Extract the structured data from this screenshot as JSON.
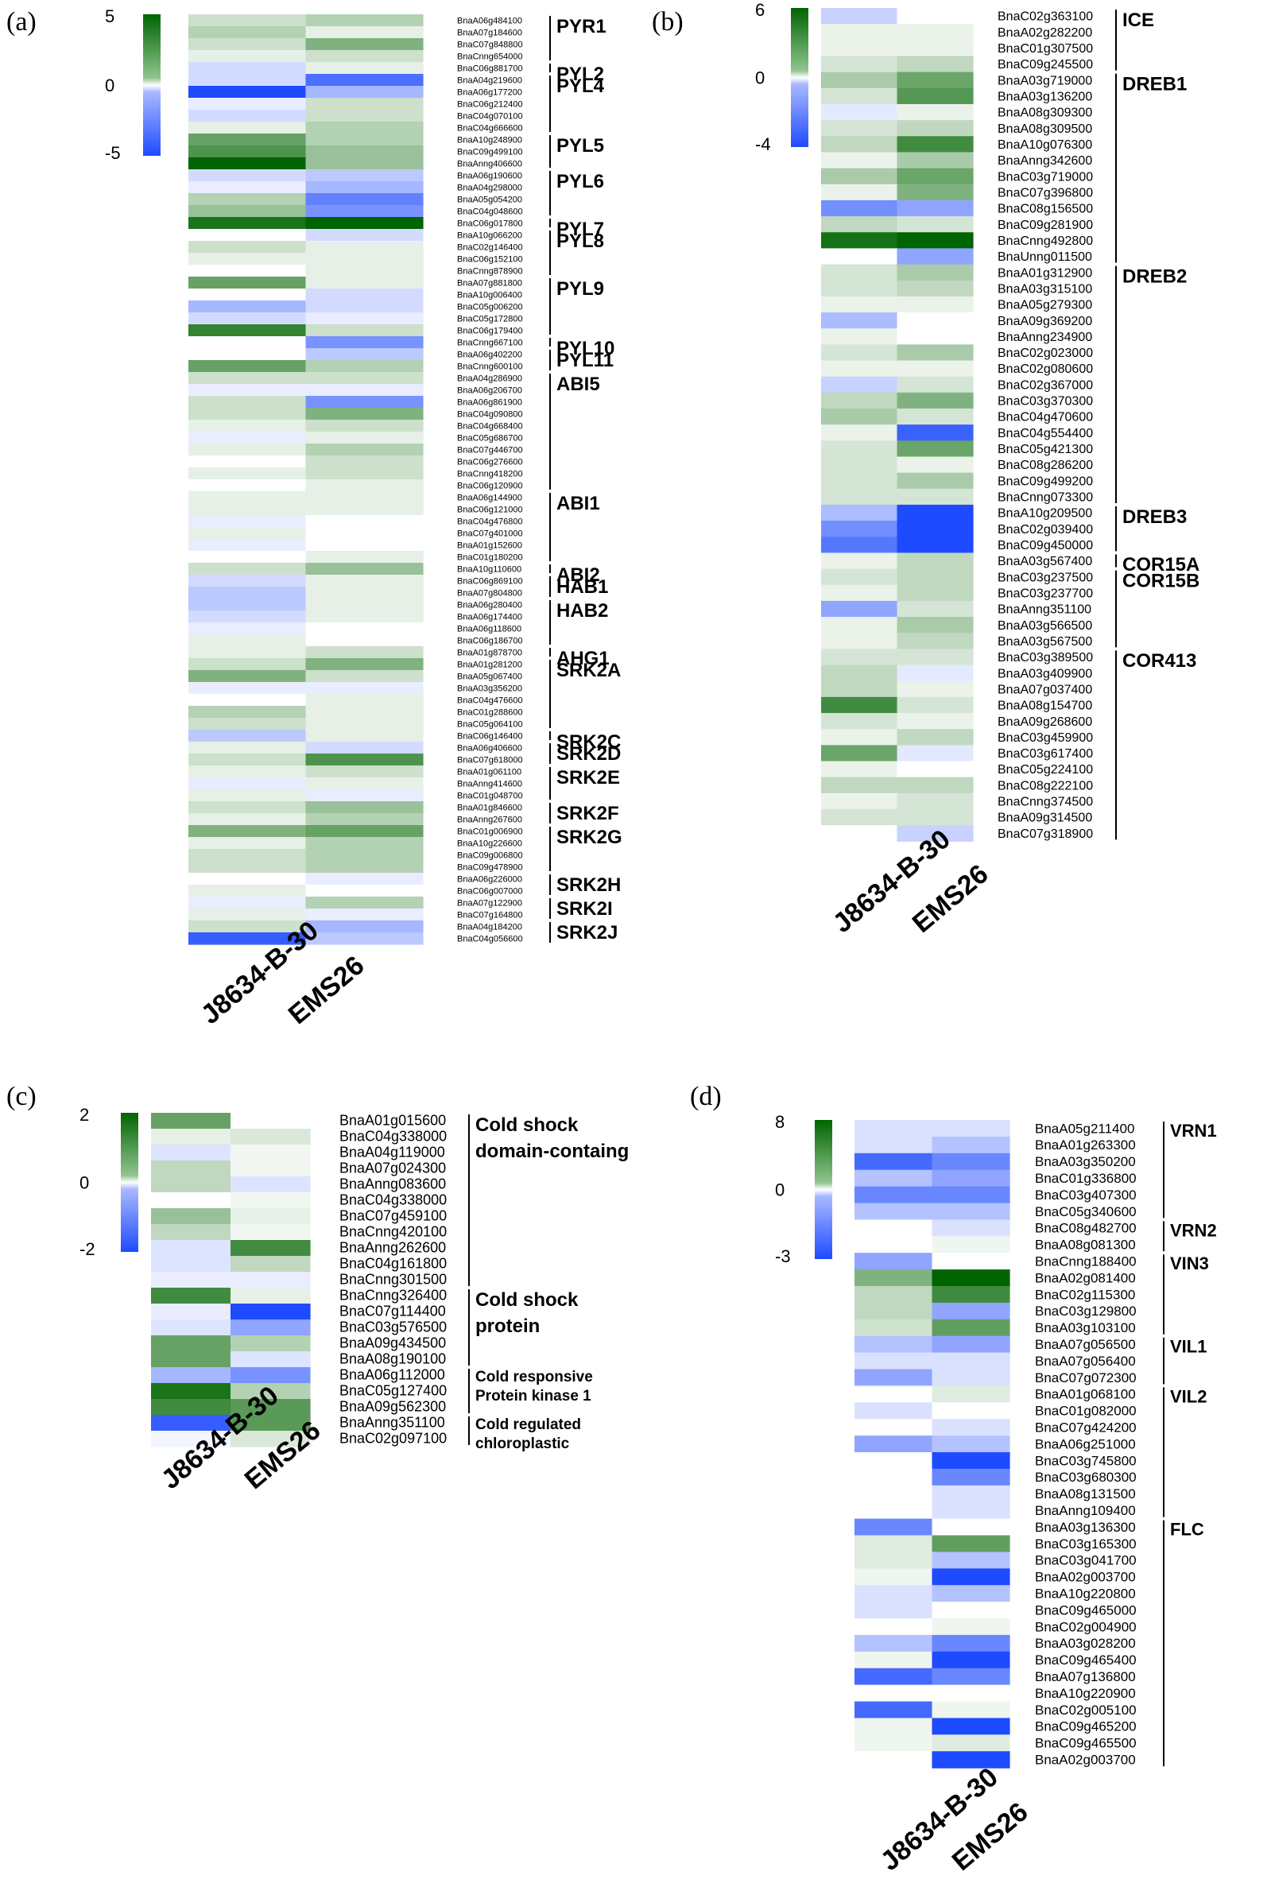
{
  "colors": {
    "high": "#006400",
    "mid": "#ffffff",
    "low": "#1e4bff"
  },
  "chart_data": [
    {
      "type": "heatmap",
      "panel": "(a)",
      "columns": [
        "J8634-B-30",
        "EMS26"
      ],
      "scale": {
        "min": -5,
        "max": 5,
        "ticks": [
          "5",
          "0",
          "-5"
        ]
      },
      "rows": [
        "BnaA06g484100",
        "BnaA07g184600",
        "BnaC07g848800",
        "BnaCnng654000",
        "BnaC06g881700",
        "BnaA04g219600",
        "BnaA06g177200",
        "BnaC06g212400",
        "BnaC04g070100",
        "BnaC04g666600",
        "BnaA10g248900",
        "BnaC09g499100",
        "BnaAnng406600",
        "BnaA06g190600",
        "BnaA04g298000",
        "BnaA05g054200",
        "BnaC04g048600",
        "BnaC06g017800",
        "BnaA10g066200",
        "BnaC02g146400",
        "BnaC06g152100",
        "BnaCnng878900",
        "BnaA07g881800",
        "BnaA10g006400",
        "BnaC05g006200",
        "BnaC05g172800",
        "BnaC06g179400",
        "BnaCnng667100",
        "BnaA06g402200",
        "BnaCnng600100",
        "BnaA04g286900",
        "BnaA06g206700",
        "BnaA06g861900",
        "BnaC04g090800",
        "BnaC04g668400",
        "BnaC05g686700",
        "BnaC07g446700",
        "BnaC06g276600",
        "BnaCnng418200",
        "BnaC06g120900",
        "BnaA06g144900",
        "BnaC06g121000",
        "BnaC04g476800",
        "BnaC07g401000",
        "BnaA01g152600",
        "BnaC01g180200",
        "BnaA10g110600",
        "BnaC06g869100",
        "BnaA07g804800",
        "BnaA06g280400",
        "BnaA06g174400",
        "BnaA06g118600",
        "BnaC06g186700",
        "BnaA01g878700",
        "BnaA01g281200",
        "BnaA05g067400",
        "BnaA03g356200",
        "BnaC04g476600",
        "BnaC01g288600",
        "BnaC05g064100",
        "BnaC06g146400",
        "BnaA06g406600",
        "BnaC07g618000",
        "BnaA01g061100",
        "BnaAnng414600",
        "BnaC01g048700",
        "BnaA01g846600",
        "BnaAnng267600",
        "BnaC01g006900",
        "BnaA10g226600",
        "BnaC09g006800",
        "BnaC09g478900",
        "BnaA06g226000",
        "BnaC06g007000",
        "BnaA07g122900",
        "BnaC07g164800",
        "BnaA04g184200",
        "BnaC04g056600"
      ],
      "values": [
        [
          1,
          1.5
        ],
        [
          1.5,
          0.5
        ],
        [
          1,
          2.5
        ],
        [
          0.5,
          1
        ],
        [
          -1,
          0.5
        ],
        [
          -1,
          -4
        ],
        [
          -5,
          -2
        ],
        [
          -0.5,
          1
        ],
        [
          -1,
          1
        ],
        [
          0.5,
          1.5
        ],
        [
          3,
          1.5
        ],
        [
          3.5,
          2
        ],
        [
          5,
          2
        ],
        [
          -1,
          -1.5
        ],
        [
          -0.5,
          -2
        ],
        [
          1.5,
          -3.5
        ],
        [
          2,
          -3
        ],
        [
          4.5,
          5
        ],
        [
          0,
          -1
        ],
        [
          1,
          0.5
        ],
        [
          0.5,
          0.5
        ],
        [
          0,
          0.5
        ],
        [
          3,
          0.5
        ],
        [
          0,
          -1
        ],
        [
          -2,
          -1
        ],
        [
          -1,
          -0.5
        ],
        [
          4,
          1
        ],
        [
          0,
          -3
        ],
        [
          0,
          -1.5
        ],
        [
          3,
          1.5
        ],
        [
          1,
          1
        ],
        [
          -0.5,
          -0.5
        ],
        [
          1,
          -3
        ],
        [
          1,
          2.5
        ],
        [
          0.5,
          1
        ],
        [
          -0.5,
          0.5
        ],
        [
          0.5,
          1.5
        ],
        [
          0,
          1
        ],
        [
          0.5,
          1
        ],
        [
          0,
          0.5
        ],
        [
          0.5,
          0.5
        ],
        [
          0.5,
          0.5
        ],
        [
          -0.5,
          0
        ],
        [
          0.5,
          0
        ],
        [
          -0.5,
          0
        ],
        [
          0,
          0.5
        ],
        [
          1,
          2
        ],
        [
          -1,
          0.5
        ],
        [
          -1.5,
          0.5
        ],
        [
          -1.5,
          0.5
        ],
        [
          -1,
          0.5
        ],
        [
          -0.5,
          0
        ],
        [
          0.5,
          0
        ],
        [
          0.5,
          1
        ],
        [
          1,
          2.5
        ],
        [
          2.5,
          1
        ],
        [
          -0.5,
          -0.5
        ],
        [
          0,
          0.5
        ],
        [
          1.5,
          0.5
        ],
        [
          1,
          0.5
        ],
        [
          -1.5,
          0.5
        ],
        [
          0.5,
          -1
        ],
        [
          1,
          3.5
        ],
        [
          0.5,
          1
        ],
        [
          -0.5,
          0.5
        ],
        [
          0.5,
          -0.5
        ],
        [
          1,
          2
        ],
        [
          0.5,
          1.5
        ],
        [
          2.5,
          3
        ],
        [
          0.5,
          1.5
        ],
        [
          1,
          1.5
        ],
        [
          1,
          1.5
        ],
        [
          0,
          -0.5
        ],
        [
          0.5,
          0
        ],
        [
          -0.5,
          1.5
        ],
        [
          0.5,
          -0.5
        ],
        [
          1,
          -2
        ],
        [
          -4.5,
          -1.5
        ]
      ],
      "groups": [
        {
          "name": "PYR1",
          "start": 0,
          "end": 3
        },
        {
          "name": "PYL2",
          "start": 4,
          "end": 4
        },
        {
          "name": "PYL4",
          "start": 5,
          "end": 9
        },
        {
          "name": "PYL5",
          "start": 10,
          "end": 12
        },
        {
          "name": "PYL6",
          "start": 13,
          "end": 16
        },
        {
          "name": "PYL7",
          "start": 17,
          "end": 17
        },
        {
          "name": "PYL8",
          "start": 18,
          "end": 21
        },
        {
          "name": "PYL9",
          "start": 22,
          "end": 26
        },
        {
          "name": "PYL10",
          "start": 27,
          "end": 27
        },
        {
          "name": "PYL11",
          "start": 28,
          "end": 29
        },
        {
          "name": "ABI5",
          "start": 30,
          "end": 39
        },
        {
          "name": "ABI1",
          "start": 40,
          "end": 45
        },
        {
          "name": "ABI2",
          "start": 46,
          "end": 46
        },
        {
          "name": "HAB1",
          "start": 47,
          "end": 48
        },
        {
          "name": "HAB2",
          "start": 49,
          "end": 52
        },
        {
          "name": "AHG1",
          "start": 53,
          "end": 53
        },
        {
          "name": "SRK2A",
          "start": 54,
          "end": 59
        },
        {
          "name": "SRK2C",
          "start": 60,
          "end": 60
        },
        {
          "name": "SRK2D",
          "start": 61,
          "end": 62
        },
        {
          "name": "SRK2E",
          "start": 63,
          "end": 65
        },
        {
          "name": "SRK2F",
          "start": 66,
          "end": 67
        },
        {
          "name": "SRK2G",
          "start": 68,
          "end": 71
        },
        {
          "name": "SRK2H",
          "start": 72,
          "end": 73
        },
        {
          "name": "SRK2I",
          "start": 74,
          "end": 75
        },
        {
          "name": "SRK2J",
          "start": 76,
          "end": 77
        }
      ]
    },
    {
      "type": "heatmap",
      "panel": "(b)",
      "columns": [
        "J8634-B-30",
        "EMS26"
      ],
      "scale": {
        "min": -4,
        "max": 6,
        "ticks": [
          "6",
          "0",
          "-4"
        ]
      },
      "rows": [
        "BnaC02g363100",
        "BnaA02g282200",
        "BnaC01g307500",
        "BnaC09g245500",
        "BnaA03g719000",
        "BnaA03g136200",
        "BnaA08g309300",
        "BnaA08g309500",
        "BnaA10g076300",
        "BnaAnng342600",
        "BnaC03g719000",
        "BnaC07g396800",
        "BnaC08g156500",
        "BnaC09g281900",
        "BnaCnng492800",
        "BnaUnng011500",
        "BnaA01g312900",
        "BnaA03g315100",
        "BnaA05g279300",
        "BnaA09g369200",
        "BnaAnng234900",
        "BnaC02g023000",
        "BnaC02g080600",
        "BnaC02g367000",
        "BnaC03g370300",
        "BnaC04g470600",
        "BnaC04g554400",
        "BnaC05g421300",
        "BnaC08g286200",
        "BnaC09g499200",
        "BnaCnng073300",
        "BnaA10g209500",
        "BnaC02g039400",
        "BnaC09g450000",
        "BnaA03g567400",
        "BnaC03g237500",
        "BnaC03g237700",
        "BnaAnng351100",
        "BnaA03g566500",
        "BnaA03g567500",
        "BnaC03g389500",
        "BnaA03g409900",
        "BnaA07g037400",
        "BnaA08g154700",
        "BnaA09g268600",
        "BnaC03g459900",
        "BnaC03g617400",
        "BnaC05g224100",
        "BnaC08g222100",
        "BnaCnng374500",
        "BnaA09g314500",
        "BnaC07g318900"
      ],
      "values": [
        [
          -1,
          0
        ],
        [
          0.5,
          0.5
        ],
        [
          0.5,
          0.5
        ],
        [
          1,
          1.5
        ],
        [
          2,
          3.5
        ],
        [
          1,
          4
        ],
        [
          -0.5,
          0.5
        ],
        [
          1,
          1.5
        ],
        [
          1.5,
          4.5
        ],
        [
          0.5,
          2
        ],
        [
          2,
          3.5
        ],
        [
          0.5,
          3
        ],
        [
          -2.5,
          -2
        ],
        [
          1.5,
          1
        ],
        [
          5.5,
          6
        ],
        [
          0,
          -2
        ],
        [
          1,
          2
        ],
        [
          1,
          1.5
        ],
        [
          0.5,
          0.5
        ],
        [
          -1.5,
          0
        ],
        [
          0.5,
          0
        ],
        [
          1,
          2
        ],
        [
          0.5,
          0.5
        ],
        [
          -1,
          1
        ],
        [
          1.5,
          3
        ],
        [
          2,
          1
        ],
        [
          0.5,
          -3.5
        ],
        [
          1,
          3.5
        ],
        [
          1,
          0.5
        ],
        [
          1,
          2
        ],
        [
          1,
          1
        ],
        [
          -1.5,
          -4
        ],
        [
          -2.5,
          -4
        ],
        [
          -3,
          -4
        ],
        [
          0.5,
          1.5
        ],
        [
          1,
          1.5
        ],
        [
          0.5,
          1.5
        ],
        [
          -2,
          1
        ],
        [
          0.5,
          2
        ],
        [
          0.5,
          1.5
        ],
        [
          1,
          1
        ],
        [
          1.5,
          -0.5
        ],
        [
          1.5,
          0.5
        ],
        [
          4.5,
          1
        ],
        [
          1,
          0.5
        ],
        [
          0.5,
          1.5
        ],
        [
          3.5,
          -0.5
        ],
        [
          0.5,
          0
        ],
        [
          1.5,
          1.5
        ],
        [
          0.5,
          1
        ],
        [
          1,
          1
        ],
        [
          0,
          -1
        ]
      ],
      "groups": [
        {
          "name": "ICE",
          "start": 0,
          "end": 3
        },
        {
          "name": "DREB1",
          "start": 4,
          "end": 15
        },
        {
          "name": "DREB2",
          "start": 16,
          "end": 30
        },
        {
          "name": "DREB3",
          "start": 31,
          "end": 33
        },
        {
          "name": "COR15A",
          "start": 34,
          "end": 34
        },
        {
          "name": "COR15B",
          "start": 35,
          "end": 39
        },
        {
          "name": "COR413",
          "start": 40,
          "end": 51
        }
      ]
    },
    {
      "type": "heatmap",
      "panel": "(c)",
      "columns": [
        "J8634-B-30",
        "EMS26"
      ],
      "scale": {
        "min": -2,
        "max": 2,
        "ticks": [
          "2",
          "0",
          "-2"
        ]
      },
      "rows": [
        "BnaA01g015600",
        "BnaC04g338000",
        "BnaA04g119000",
        "BnaA07g024300",
        "BnaAnng083600",
        "BnaC04g338000",
        "BnaC07g459100",
        "BnaCnng420100",
        "BnaAnng262600",
        "BnaC04g161800",
        "BnaCnng301500",
        "BnaCnng326400",
        "BnaC07g114400",
        "BnaC03g576500",
        "BnaA09g434500",
        "BnaA08g190100",
        "BnaA06g112000",
        "BnaC05g127400",
        "BnaA09g562300",
        "BnaAnng351100",
        "BnaC02g097100"
      ],
      "values": [
        [
          1.2,
          0
        ],
        [
          0.2,
          0.3
        ],
        [
          -0.3,
          0.1
        ],
        [
          0.5,
          0.1
        ],
        [
          0.5,
          -0.3
        ],
        [
          0,
          0.1
        ],
        [
          0.8,
          0.2
        ],
        [
          0.5,
          0.1
        ],
        [
          -0.3,
          1.5
        ],
        [
          -0.3,
          0.5
        ],
        [
          -0.2,
          -0.2
        ],
        [
          1.5,
          0.2
        ],
        [
          -0.2,
          -2
        ],
        [
          -0.3,
          -1
        ],
        [
          1.2,
          0.6
        ],
        [
          1.2,
          -0.3
        ],
        [
          -0.8,
          -1.2
        ],
        [
          1.8,
          0.6
        ],
        [
          1.5,
          1.3
        ],
        [
          -1.8,
          1.3
        ],
        [
          -0.1,
          0.3
        ]
      ],
      "groups": [
        {
          "name": "Cold shock domain-containg",
          "lines": [
            "Cold shock",
            "domain-containg"
          ],
          "start": 0,
          "end": 10,
          "size": "large"
        },
        {
          "name": "Cold shock protein",
          "lines": [
            "Cold shock",
            "protein"
          ],
          "start": 11,
          "end": 15,
          "size": "large"
        },
        {
          "name": "Cold responsive Protein kinase 1",
          "lines": [
            "Cold responsive",
            "Protein kinase 1"
          ],
          "start": 16,
          "end": 18,
          "size": "small"
        },
        {
          "name": "Cold regulated chloroplastic",
          "lines": [
            "Cold regulated",
            "chloroplastic"
          ],
          "start": 19,
          "end": 20,
          "size": "small"
        }
      ]
    },
    {
      "type": "heatmap",
      "panel": "(d)",
      "columns": [
        "J8634-B-30",
        "EMS26"
      ],
      "scale": {
        "min": -3,
        "max": 8,
        "ticks": [
          "8",
          "0",
          "-3"
        ]
      },
      "rows": [
        "BnaA05g211400",
        "BnaA01g263300",
        "BnaA03g350200",
        "BnaC01g336800",
        "BnaC03g407300",
        "BnaC05g340600",
        "BnaC08g482700",
        "BnaA08g081300",
        "BnaCnng188400",
        "BnaA02g081400",
        "BnaC02g115300",
        "BnaC03g129800",
        "BnaA03g103100",
        "BnaA07g056500",
        "BnaA07g056400",
        "BnaC07g072300",
        "BnaA01g068100",
        "BnaC01g082000",
        "BnaC07g424200",
        "BnaA06g251000",
        "BnaC03g745800",
        "BnaC03g680300",
        "BnaA08g131500",
        "BnaAnng109400",
        "BnaA03g136300",
        "BnaC03g165300",
        "BnaC03g041700",
        "BnaA02g003700",
        "BnaA10g220800",
        "BnaC09g465000",
        "BnaC02g004900",
        "BnaA03g028200",
        "BnaC09g465400",
        "BnaA07g136800",
        "BnaA10g220900",
        "BnaC02g005100",
        "BnaC09g465200",
        "BnaC09g465500",
        "BnaA02g003700"
      ],
      "values": [
        [
          -0.5,
          -0.5
        ],
        [
          -0.5,
          -1
        ],
        [
          -2.5,
          -2
        ],
        [
          -1,
          -1.5
        ],
        [
          -2,
          -2
        ],
        [
          -1,
          -1
        ],
        [
          0,
          -0.5
        ],
        [
          0,
          0.5
        ],
        [
          -1.5,
          0
        ],
        [
          4,
          8
        ],
        [
          2,
          6
        ],
        [
          2,
          -1.5
        ],
        [
          1.5,
          5
        ],
        [
          -1,
          -1.5
        ],
        [
          -0.5,
          -0.5
        ],
        [
          -1.5,
          -0.5
        ],
        [
          0,
          1
        ],
        [
          -0.5,
          0
        ],
        [
          0,
          -0.5
        ],
        [
          -1.5,
          -1
        ],
        [
          0,
          -3
        ],
        [
          0,
          -2
        ],
        [
          0,
          -0.5
        ],
        [
          0,
          -0.5
        ],
        [
          -2,
          0
        ],
        [
          1,
          5
        ],
        [
          1,
          -1
        ],
        [
          0.5,
          -3
        ],
        [
          -0.5,
          -1
        ],
        [
          -0.5,
          0
        ],
        [
          0,
          0.5
        ],
        [
          -1,
          -2
        ],
        [
          0.5,
          -3
        ],
        [
          -2.5,
          -2
        ],
        [
          0,
          0
        ],
        [
          -2.5,
          0.5
        ],
        [
          0.5,
          -3
        ],
        [
          0.5,
          1
        ],
        [
          0,
          -3
        ]
      ],
      "groups": [
        {
          "name": "VRN1",
          "start": 0,
          "end": 5
        },
        {
          "name": "VRN2",
          "start": 6,
          "end": 7
        },
        {
          "name": "VIN3",
          "start": 8,
          "end": 12
        },
        {
          "name": "VIL1",
          "start": 13,
          "end": 15
        },
        {
          "name": "VIL2",
          "start": 16,
          "end": 23
        },
        {
          "name": "FLC",
          "start": 24,
          "end": 38
        }
      ]
    }
  ]
}
